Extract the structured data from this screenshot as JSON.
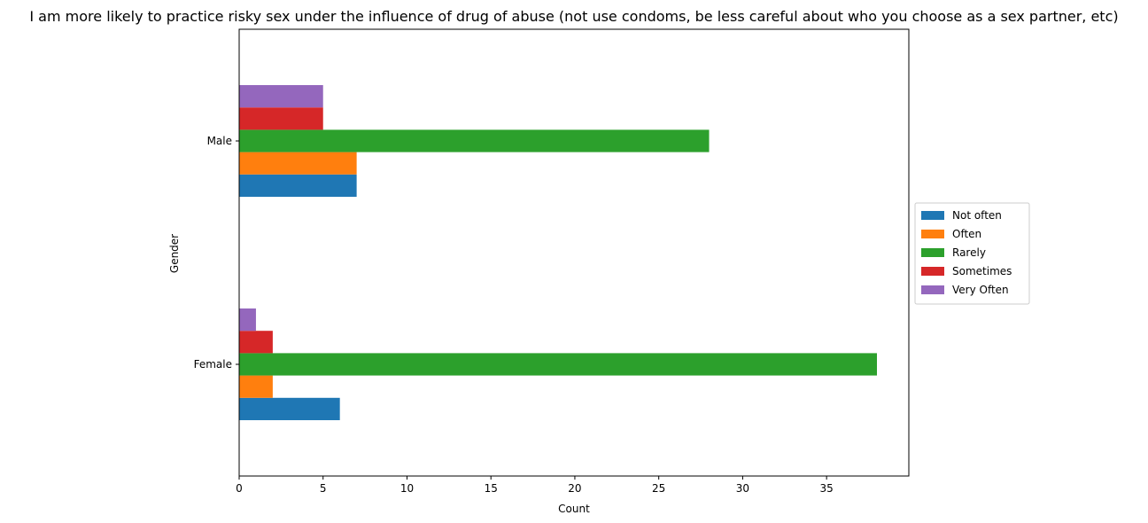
{
  "chart_data": {
    "type": "bar",
    "orientation": "horizontal",
    "title": "I am more likely to practice risky sex under the influence of drug of abuse (not use condoms, be less careful about who you choose as a sex partner, etc)",
    "xlabel": "Count",
    "ylabel": "Gender",
    "categories": [
      "Female",
      "Male"
    ],
    "xlim": [
      0,
      39.9
    ],
    "xticks": [
      0,
      5,
      10,
      15,
      20,
      25,
      30,
      35
    ],
    "grid": false,
    "legend_position": "center-right-outside",
    "series": [
      {
        "name": "Not often",
        "color": "#1f77b4",
        "values": [
          6,
          7
        ]
      },
      {
        "name": "Often",
        "color": "#ff7f0e",
        "values": [
          2,
          7
        ]
      },
      {
        "name": "Rarely",
        "color": "#2ca02c",
        "values": [
          38,
          28
        ]
      },
      {
        "name": "Sometimes",
        "color": "#d62728",
        "values": [
          2,
          5
        ]
      },
      {
        "name": "Very Often",
        "color": "#9467bd",
        "values": [
          1,
          5
        ]
      }
    ]
  }
}
